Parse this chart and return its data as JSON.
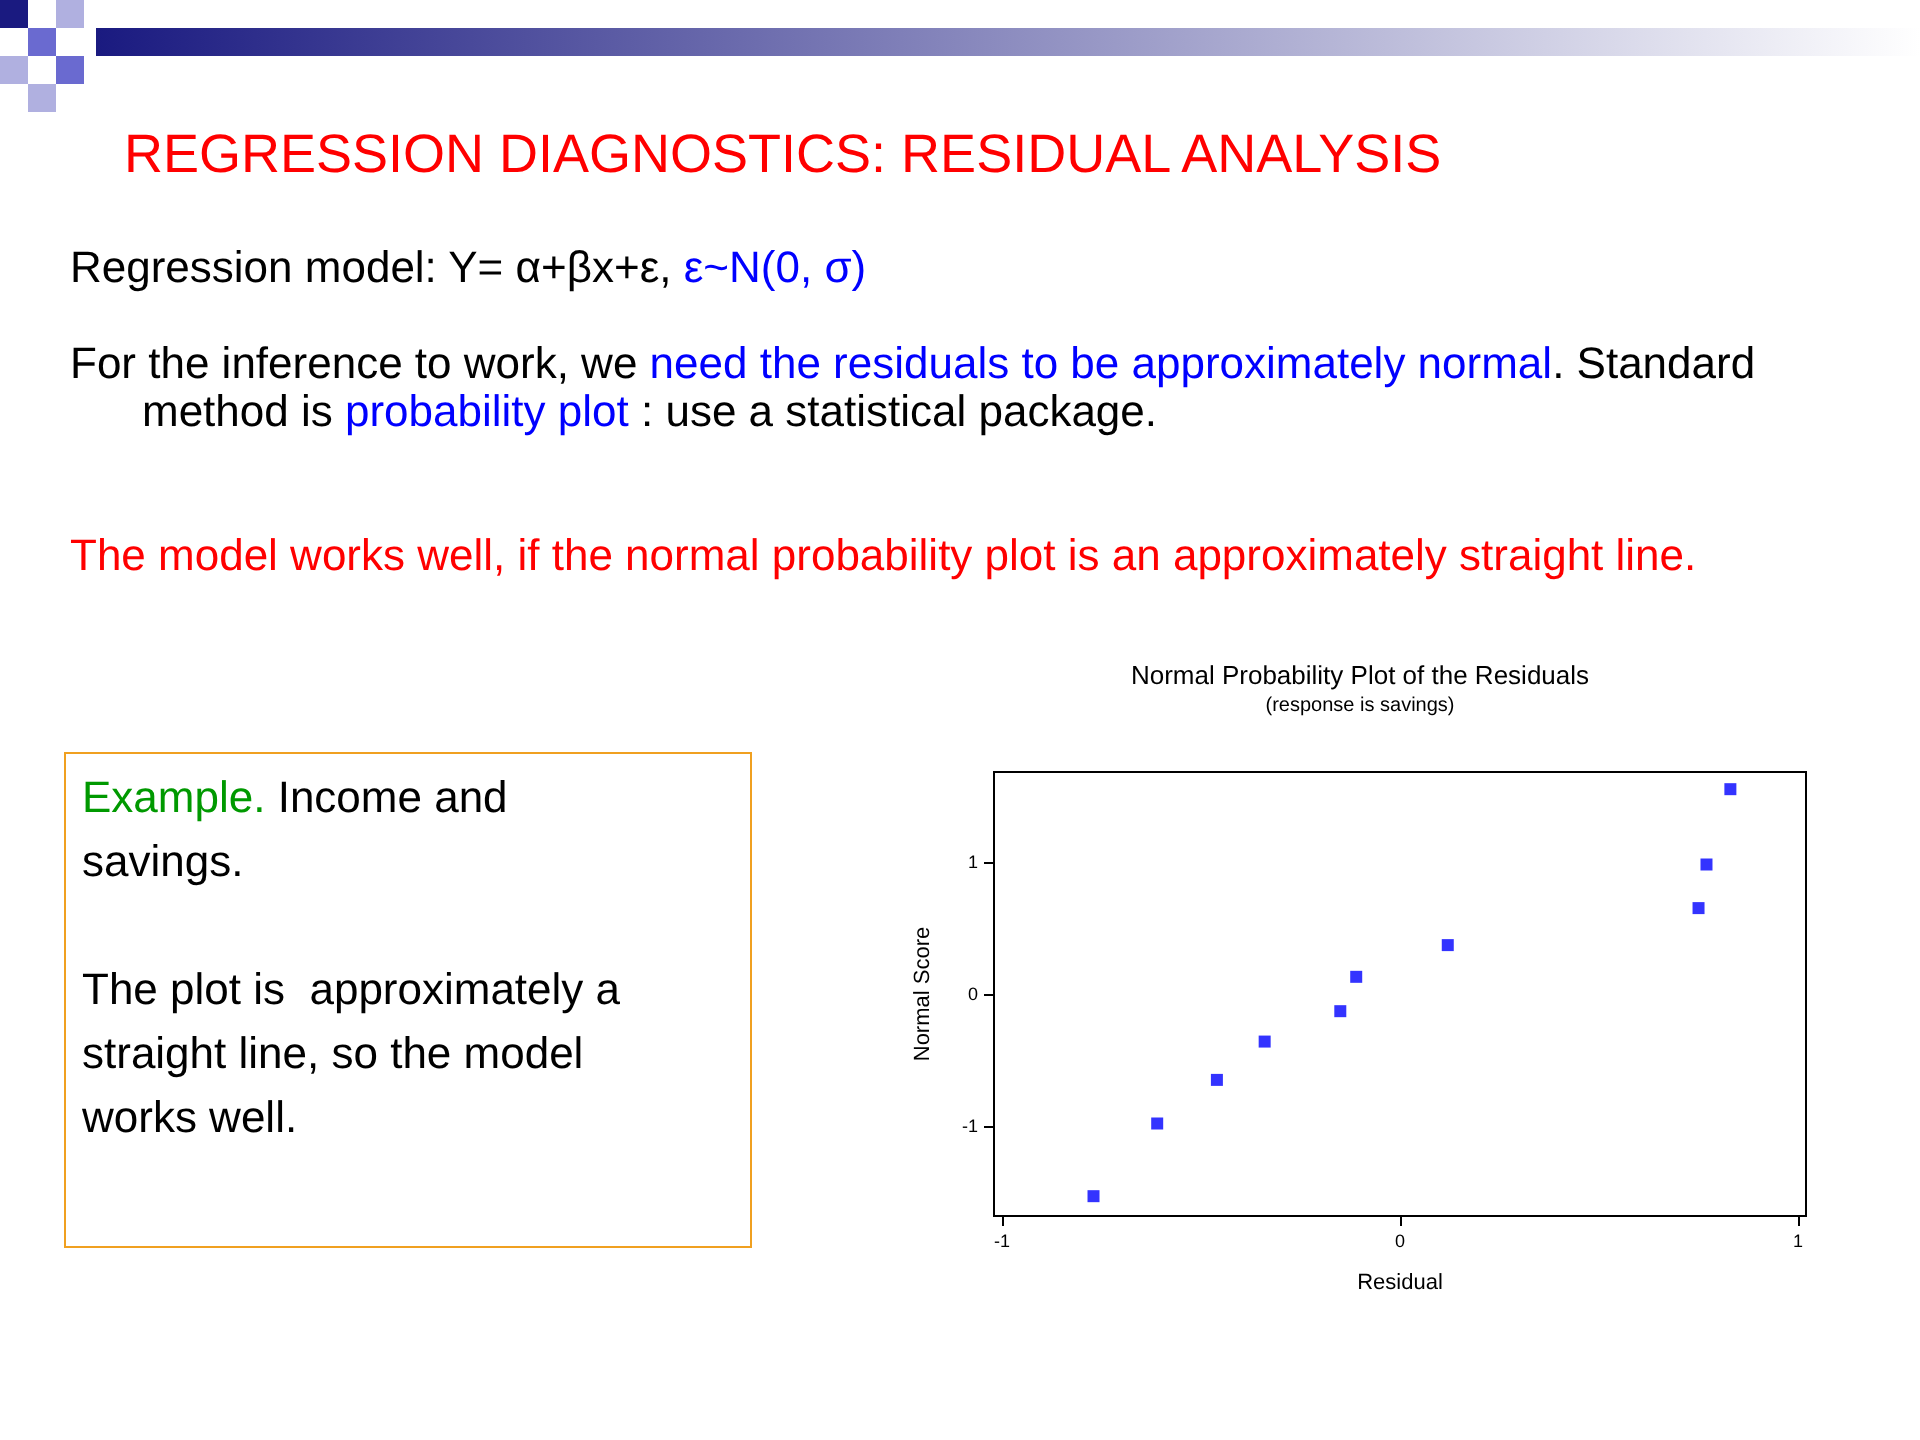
{
  "chart_data": {
    "type": "scatter",
    "title": "Normal Probability Plot of the Residuals",
    "subtitle": "(response is savings)",
    "xlabel": "Residual",
    "ylabel": "Normal Score",
    "x": [
      -0.77,
      -0.61,
      -0.46,
      -0.34,
      -0.15,
      -0.11,
      0.12,
      0.75,
      0.77,
      0.83
    ],
    "series": [
      {
        "color": "#0000ff",
        "values": [
          -1.53,
          -0.98,
          -0.65,
          -0.36,
          -0.13,
          0.13,
          0.37,
          0.65,
          0.98,
          1.55
        ]
      }
    ],
    "xlim": [
      -1.02,
      1.02
    ],
    "xticks": [
      -1,
      0,
      1
    ],
    "ylim": [
      -1.68,
      1.68
    ],
    "yticks": [
      -1,
      0,
      1
    ],
    "grid": false,
    "marker": "square",
    "annotations": [
      "REGRESSION DIAGNOSTICS: RESIDUAL ANALYSIS",
      "Regression model: Y= α+βx+ε, ",
      "ε~N(0, σ)",
      "For the inference to work, we ",
      "need the residuals to be approximately normal",
      ". Standard method is ",
      "probability plot",
      " : use a statistical package.",
      "The model works well, if the normal probability plot is an approximately straight line.",
      "Example.",
      " Income and savings.",
      "The plot is  approximately a straight line, so the model works well."
    ]
  }
}
